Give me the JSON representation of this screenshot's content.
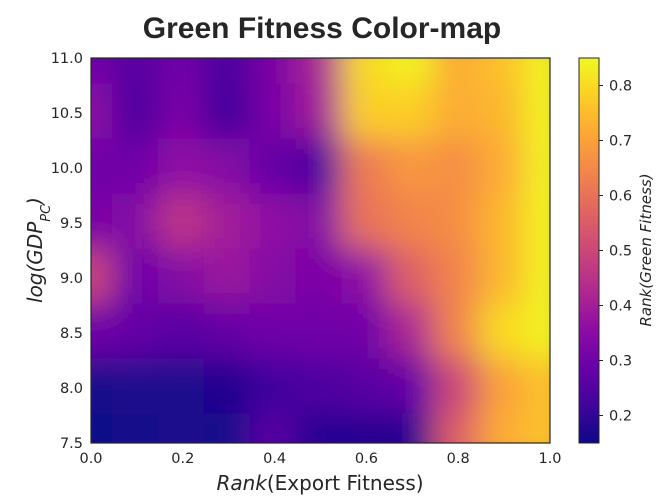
{
  "chart_data": {
    "type": "heatmap",
    "title": "Green Fitness Color-map",
    "xlabel_main": "Rank",
    "xlabel_paren": "(Export Fitness)",
    "ylabel_main": "log(GDP",
    "ylabel_sub": "PC",
    "ylabel_close": ")",
    "xlim": [
      0.0,
      1.0
    ],
    "ylim": [
      7.5,
      11.0
    ],
    "xticks": [
      "0.0",
      "0.2",
      "0.4",
      "0.6",
      "0.8",
      "1.0"
    ],
    "yticks": [
      "7.5",
      "8.0",
      "8.5",
      "9.0",
      "9.5",
      "10.0",
      "10.5",
      "11.0"
    ],
    "colormap": "plasma",
    "colorbar": {
      "label": "Rank(Green Fitness)",
      "range": [
        0.15,
        0.85
      ],
      "ticks": [
        "0.2",
        "0.3",
        "0.4",
        "0.5",
        "0.6",
        "0.7",
        "0.8"
      ]
    },
    "grid": false,
    "x": [
      0.0,
      0.1,
      0.2,
      0.3,
      0.4,
      0.5,
      0.6,
      0.7,
      0.8,
      0.9,
      1.0
    ],
    "y": [
      11.0,
      10.5,
      10.0,
      9.5,
      9.0,
      8.5,
      8.0,
      7.5
    ],
    "values": [
      [
        0.3,
        0.26,
        0.3,
        0.24,
        0.32,
        0.42,
        0.8,
        0.84,
        0.72,
        0.76,
        0.84
      ],
      [
        0.36,
        0.24,
        0.32,
        0.22,
        0.32,
        0.4,
        0.78,
        0.78,
        0.72,
        0.74,
        0.84
      ],
      [
        0.3,
        0.3,
        0.36,
        0.34,
        0.28,
        0.24,
        0.62,
        0.68,
        0.66,
        0.72,
        0.84
      ],
      [
        0.32,
        0.34,
        0.46,
        0.4,
        0.36,
        0.34,
        0.6,
        0.64,
        0.66,
        0.74,
        0.84
      ],
      [
        0.5,
        0.3,
        0.34,
        0.38,
        0.34,
        0.32,
        0.36,
        0.56,
        0.64,
        0.74,
        0.84
      ],
      [
        0.3,
        0.28,
        0.26,
        0.28,
        0.3,
        0.3,
        0.3,
        0.42,
        0.64,
        0.8,
        0.84
      ],
      [
        0.16,
        0.17,
        0.17,
        0.18,
        0.22,
        0.24,
        0.26,
        0.28,
        0.5,
        0.7,
        0.76
      ],
      [
        0.15,
        0.16,
        0.17,
        0.16,
        0.26,
        0.18,
        0.18,
        0.18,
        0.56,
        0.72,
        0.76
      ]
    ]
  }
}
